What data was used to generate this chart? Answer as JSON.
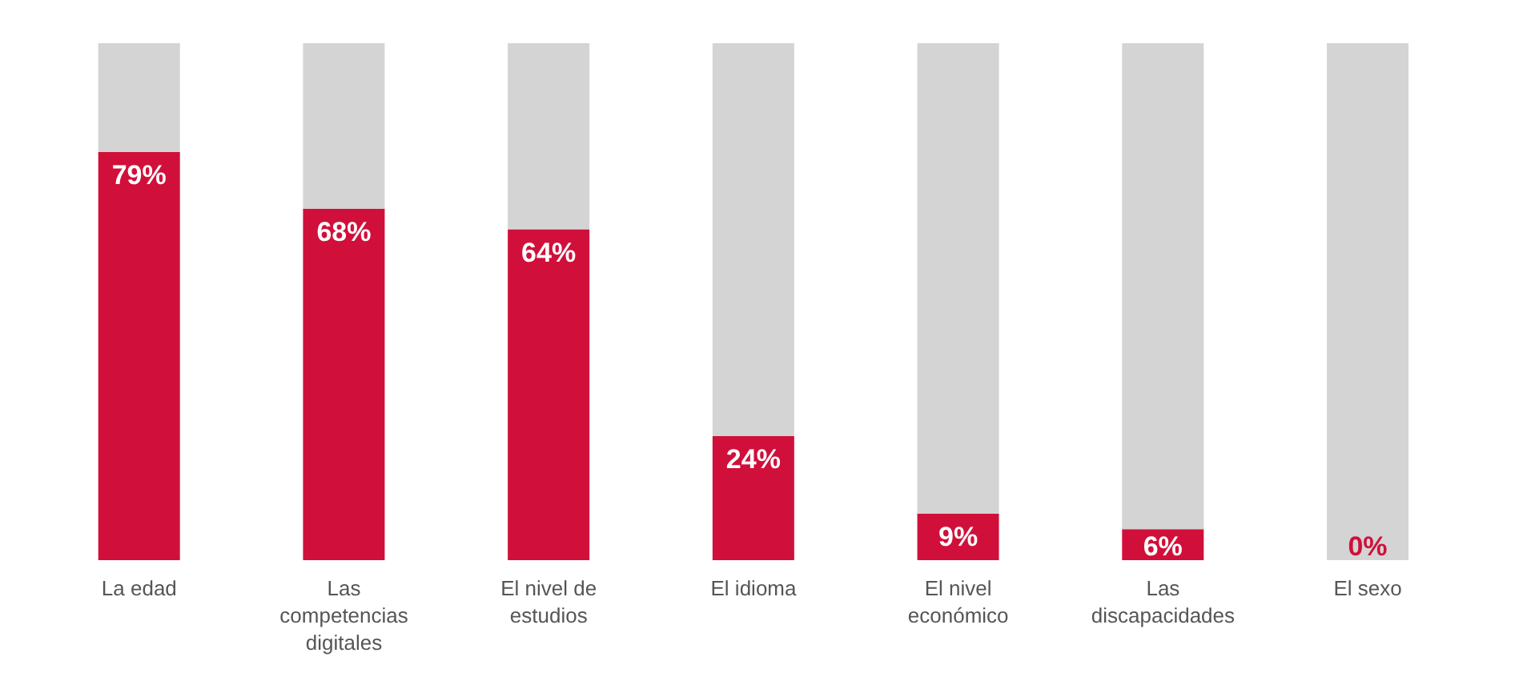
{
  "chart_data": {
    "type": "bar",
    "stacked": true,
    "categories": [
      "La edad",
      "Las competencias digitales",
      "El nivel de estudios",
      "El idioma",
      "El nivel económico",
      "Las discapacidades",
      "El sexo"
    ],
    "series": [
      {
        "color": "#d0103a",
        "values": [
          79,
          68,
          64,
          24,
          9,
          6,
          0
        ],
        "value_labels": [
          "79%",
          "68%",
          "64%",
          "24%",
          "9%",
          "6%",
          "0%"
        ]
      },
      {
        "color": "#d4d4d4",
        "values": [
          21,
          32,
          36,
          76,
          91,
          94,
          100
        ]
      }
    ],
    "legend": false,
    "grid": false
  }
}
